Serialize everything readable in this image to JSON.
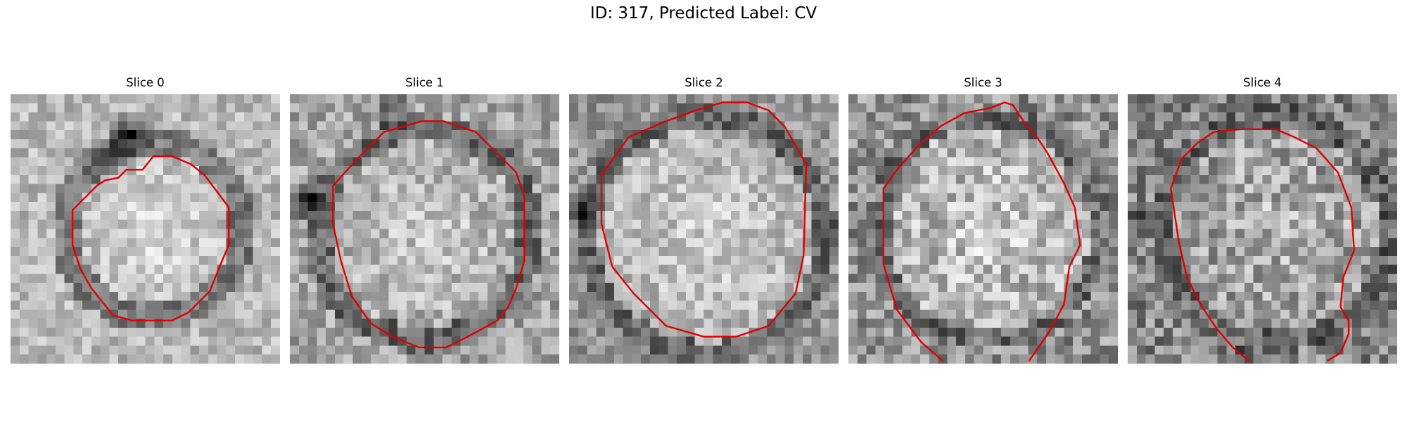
{
  "figure": {
    "title": "ID: 317, Predicted Label: CV"
  },
  "panels": [
    {
      "title": "Slice 0",
      "image_description": "noisy grayscale cryo-EM patch of a round particle with a dark smear at the top",
      "contour_color": "#e00000"
    },
    {
      "title": "Slice 1",
      "image_description": "noisy grayscale patch, bright disk bordered by darker ring",
      "contour_color": "#e00000"
    },
    {
      "title": "Slice 2",
      "image_description": "noisy grayscale patch, large bright disk with dark ring",
      "contour_color": "#e00000"
    },
    {
      "title": "Slice 3",
      "image_description": "noisy grayscale patch, speckled disk, contour open at bottom",
      "contour_color": "#e00000"
    },
    {
      "title": "Slice 4",
      "image_description": "noisy grayscale patch, speckled disk with dark left edge, contour open at bottom",
      "contour_color": "#e00000"
    }
  ]
}
